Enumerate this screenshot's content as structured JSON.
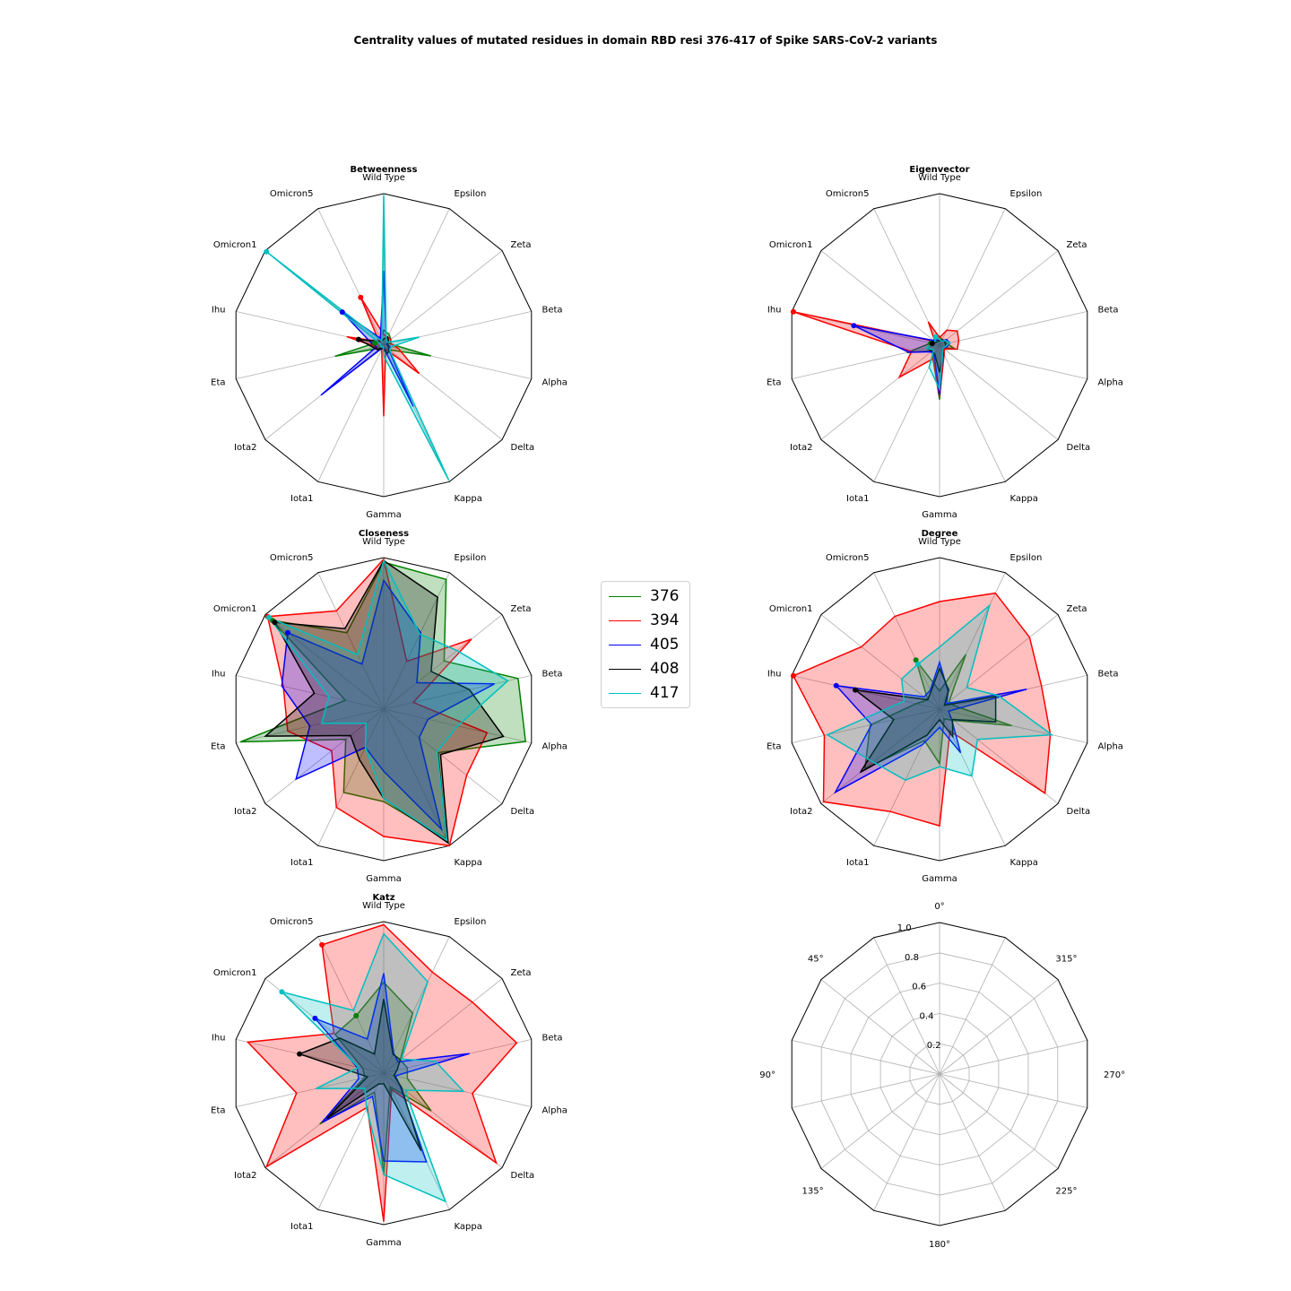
{
  "title": "Centrality values of mutated residues in domain RBD resi 376-417 of Spike SARS-CoV-2 variants",
  "colors": {
    "376": "#008000",
    "394": "#ff0000",
    "405": "#0000ff",
    "408": "#000000",
    "417": "#00bfbf"
  },
  "chart_data": [
    {
      "type": "radar",
      "title": "Betweenness",
      "categories": [
        "Wild Type",
        "Epsilon",
        "Zeta",
        "Beta",
        "Alpha",
        "Delta",
        "Kappa",
        "Gamma",
        "Iota1",
        "Iota2",
        "Eta",
        "Ihu",
        "Omicron1",
        "Omicron5"
      ],
      "series": [
        {
          "name": "376",
          "values": [
            0.1,
            0.08,
            0.06,
            0.04,
            0.32,
            0.05,
            0.03,
            0.02,
            0.03,
            0.03,
            0.33,
            0.06,
            0.04,
            0.05
          ]
        },
        {
          "name": "394",
          "values": [
            0.07,
            0.06,
            0.06,
            0.05,
            0.1,
            0.3,
            0.03,
            0.47,
            0.03,
            0.05,
            0.05,
            0.25,
            0.04,
            0.35
          ]
        },
        {
          "name": "405",
          "values": [
            0.49,
            0.04,
            0.03,
            0.02,
            0.05,
            0.04,
            0.45,
            0.02,
            0.02,
            0.53,
            0.05,
            0.09,
            0.35,
            0.05
          ]
        },
        {
          "name": "408",
          "values": [
            0.04,
            0.06,
            0.04,
            0.03,
            0.03,
            0.05,
            0.06,
            0.03,
            0.02,
            0.05,
            0.07,
            0.17,
            0.04,
            0.03
          ]
        },
        {
          "name": "417",
          "values": [
            0.99,
            0.04,
            0.03,
            0.24,
            0.05,
            0.05,
            0.99,
            0.07,
            0.01,
            0.02,
            0.02,
            0.02,
            0.99,
            0.03
          ]
        }
      ],
      "ylim": [
        0,
        1
      ]
    },
    {
      "type": "radar",
      "title": "Eigenvector",
      "categories": [
        "Wild Type",
        "Epsilon",
        "Zeta",
        "Beta",
        "Alpha",
        "Delta",
        "Kappa",
        "Gamma",
        "Iota1",
        "Iota2",
        "Eta",
        "Ihu",
        "Omicron1",
        "Omicron5"
      ],
      "series": [
        {
          "name": "376",
          "values": [
            0.06,
            0.04,
            0.05,
            0.05,
            0.1,
            0.03,
            0.06,
            0.36,
            0.1,
            0.06,
            0.22,
            0.06,
            0.03,
            0.06
          ]
        },
        {
          "name": "394",
          "values": [
            0.05,
            0.11,
            0.15,
            0.13,
            0.12,
            0.04,
            0.07,
            0.34,
            0.1,
            0.34,
            0.19,
            0.99,
            0.04,
            0.17
          ]
        },
        {
          "name": "405",
          "values": [
            0.03,
            0.03,
            0.06,
            0.07,
            0.05,
            0.03,
            0.05,
            0.33,
            0.08,
            0.07,
            0.21,
            0.58,
            0.05,
            0.04
          ]
        },
        {
          "name": "408",
          "values": [
            0.03,
            0.04,
            0.04,
            0.04,
            0.04,
            0.03,
            0.06,
            0.18,
            0.07,
            0.06,
            0.09,
            0.05,
            0.03,
            0.03
          ]
        },
        {
          "name": "417",
          "values": [
            0.04,
            0.03,
            0.05,
            0.07,
            0.04,
            0.03,
            0.05,
            0.29,
            0.16,
            0.05,
            0.09,
            0.05,
            0.04,
            0.06
          ]
        }
      ],
      "ylim": [
        0,
        1
      ]
    },
    {
      "type": "radar",
      "title": "Closeness",
      "categories": [
        "Wild Type",
        "Epsilon",
        "Zeta",
        "Beta",
        "Alpha",
        "Delta",
        "Kappa",
        "Gamma",
        "Iota1",
        "Iota2",
        "Eta",
        "Ihu",
        "Omicron1",
        "Omicron5"
      ],
      "series": [
        {
          "name": "376",
          "values": [
            0.97,
            0.95,
            0.51,
            0.91,
            0.96,
            0.46,
            0.95,
            0.61,
            0.61,
            0.32,
            0.97,
            0.26,
            0.94,
            0.56
          ]
        },
        {
          "name": "394",
          "values": [
            0.99,
            0.35,
            0.74,
            0.2,
            0.7,
            0.7,
            1.0,
            0.84,
            0.72,
            0.44,
            0.65,
            0.68,
            0.98,
            0.72
          ]
        },
        {
          "name": "405",
          "values": [
            0.85,
            0.56,
            0.28,
            0.75,
            0.3,
            0.3,
            0.88,
            0.41,
            0.28,
            0.74,
            0.5,
            0.69,
            0.81,
            0.33
          ]
        },
        {
          "name": "408",
          "values": [
            0.98,
            0.82,
            0.4,
            0.58,
            0.81,
            0.48,
            0.98,
            0.59,
            0.37,
            0.28,
            0.8,
            0.47,
            0.92,
            0.59
          ]
        },
        {
          "name": "417",
          "values": [
            0.98,
            0.55,
            0.62,
            0.84,
            0.5,
            0.45,
            0.96,
            0.59,
            0.28,
            0.15,
            0.42,
            0.37,
            0.97,
            0.4
          ]
        }
      ],
      "ylim": [
        0,
        1
      ]
    },
    {
      "type": "radar",
      "title": "Degree",
      "categories": [
        "Wild Type",
        "Epsilon",
        "Zeta",
        "Beta",
        "Alpha",
        "Delta",
        "Kappa",
        "Gamma",
        "Iota1",
        "Iota2",
        "Eta",
        "Ihu",
        "Omicron1",
        "Omicron5"
      ],
      "series": [
        {
          "name": "376",
          "values": [
            0.12,
            0.4,
            0.08,
            0.1,
            0.49,
            0.12,
            0.07,
            0.36,
            0.23,
            0.63,
            0.47,
            0.16,
            0.1,
            0.36
          ]
        },
        {
          "name": "394",
          "values": [
            0.71,
            0.85,
            0.76,
            0.69,
            0.75,
            0.89,
            0.16,
            0.77,
            0.75,
            0.98,
            0.78,
            0.99,
            0.66,
            0.68
          ]
        },
        {
          "name": "405",
          "values": [
            0.31,
            0.13,
            0.06,
            0.59,
            0.06,
            0.1,
            0.32,
            0.12,
            0.26,
            0.88,
            0.46,
            0.7,
            0.13,
            0.14
          ]
        },
        {
          "name": "408",
          "values": [
            0.27,
            0.14,
            0.04,
            0.38,
            0.38,
            0.11,
            0.2,
            0.07,
            0.19,
            0.67,
            0.31,
            0.57,
            0.1,
            0.13
          ]
        },
        {
          "name": "417",
          "values": [
            0.41,
            0.76,
            0.23,
            0.4,
            0.76,
            0.32,
            0.49,
            0.38,
            0.52,
            0.56,
            0.76,
            0.24,
            0.32,
            0.33
          ]
        }
      ],
      "ylim": [
        0,
        1
      ]
    },
    {
      "type": "radar",
      "title": "Katz",
      "categories": [
        "Wild Type",
        "Epsilon",
        "Zeta",
        "Beta",
        "Alpha",
        "Delta",
        "Kappa",
        "Gamma",
        "Iota1",
        "Iota2",
        "Eta",
        "Ihu",
        "Omicron1",
        "Omicron5"
      ],
      "series": [
        {
          "name": "376",
          "values": [
            0.6,
            0.44,
            0.14,
            0.16,
            0.16,
            0.4,
            0.1,
            0.67,
            0.14,
            0.54,
            0.13,
            0.14,
            0.41,
            0.42
          ]
        },
        {
          "name": "394",
          "values": [
            0.98,
            0.74,
            0.75,
            0.9,
            0.6,
            0.95,
            0.12,
            0.98,
            0.25,
            0.99,
            0.59,
            0.92,
            0.42,
            0.94
          ]
        },
        {
          "name": "405",
          "values": [
            0.66,
            0.15,
            0.12,
            0.58,
            0.08,
            0.14,
            0.65,
            0.58,
            0.17,
            0.52,
            0.17,
            0.18,
            0.58,
            0.25
          ]
        },
        {
          "name": "408",
          "values": [
            0.49,
            0.14,
            0.14,
            0.09,
            0.07,
            0.15,
            0.57,
            0.07,
            0.08,
            0.48,
            0.11,
            0.57,
            0.37,
            0.14
          ]
        },
        {
          "name": "417",
          "values": [
            0.92,
            0.67,
            0.15,
            0.35,
            0.54,
            0.18,
            0.94,
            0.67,
            0.26,
            0.16,
            0.46,
            0.17,
            0.86,
            0.46
          ]
        }
      ],
      "ylim": [
        0,
        1
      ]
    },
    {
      "type": "radar",
      "title": "",
      "empty": true,
      "angle_labels": [
        "0°",
        "315°",
        "270°",
        "225°",
        "180°",
        "135°",
        "90°",
        "45°"
      ],
      "radial_ticks": [
        "0.2",
        "0.4",
        "0.6",
        "0.8",
        "1.0"
      ],
      "ylim": [
        0,
        1
      ]
    }
  ],
  "legend": {
    "entries": [
      "376",
      "394",
      "405",
      "408",
      "417"
    ],
    "placement": "center-right of middle row"
  }
}
